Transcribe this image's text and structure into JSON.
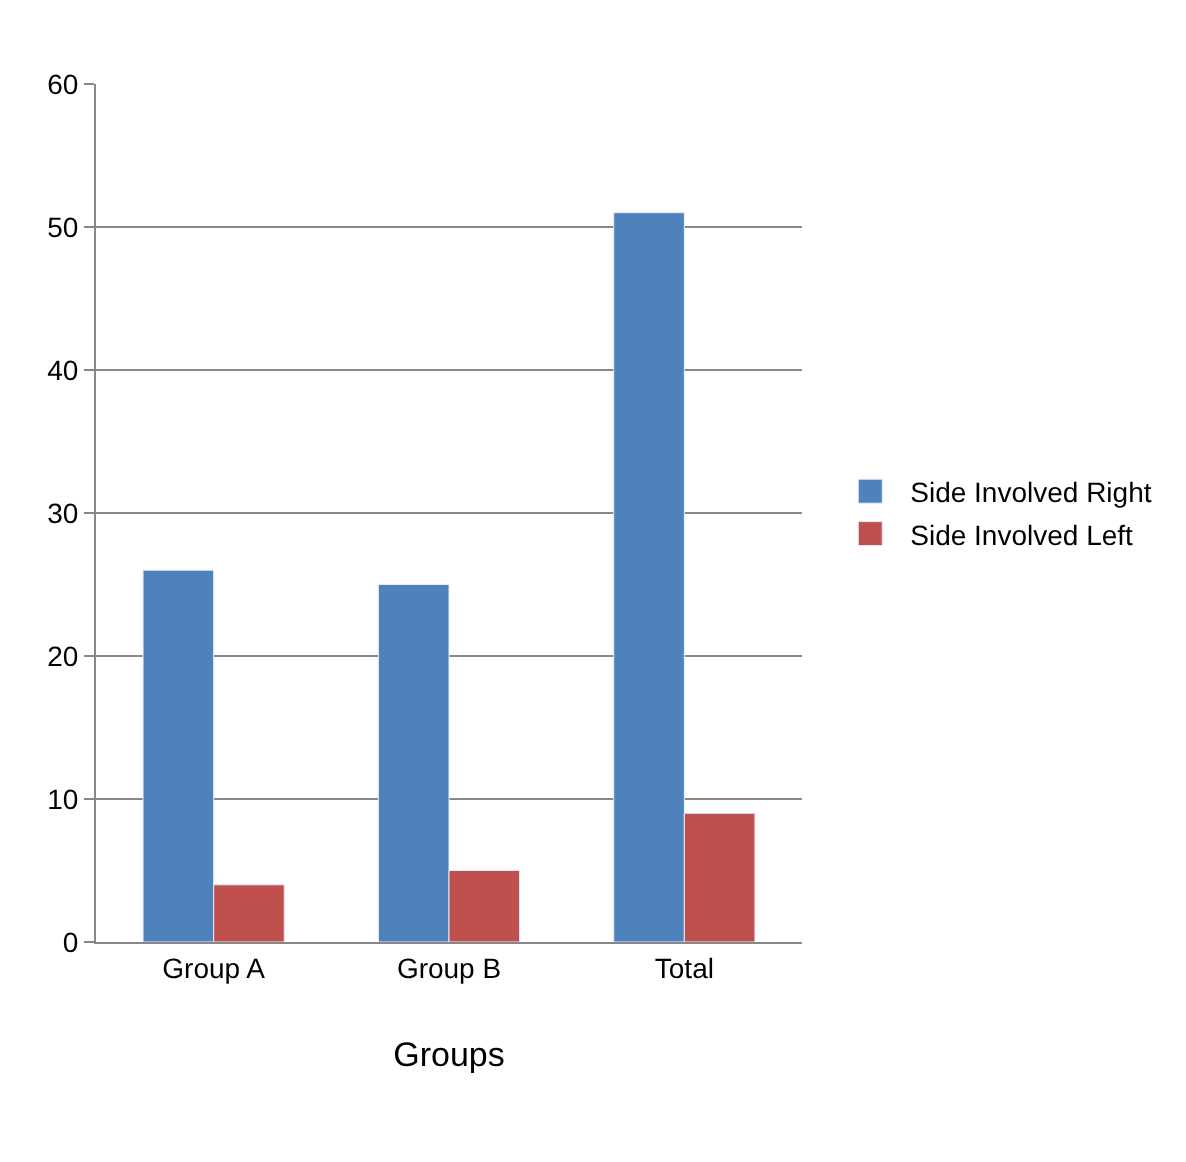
{
  "chart_data": {
    "type": "bar",
    "xlabel": "Groups",
    "categories": [
      "Group A",
      "Group B",
      "Total"
    ],
    "series": [
      {
        "name": "Side Involved Right",
        "color": "#4f81bd",
        "values": [
          26,
          25,
          51
        ]
      },
      {
        "name": "Side Involved Left",
        "color": "#c0504d",
        "values": [
          4,
          5,
          9
        ]
      }
    ],
    "ylim": [
      0,
      60
    ],
    "yticks": [
      0,
      10,
      20,
      30,
      40,
      50,
      60
    ],
    "grid": "y",
    "legend": "right"
  }
}
